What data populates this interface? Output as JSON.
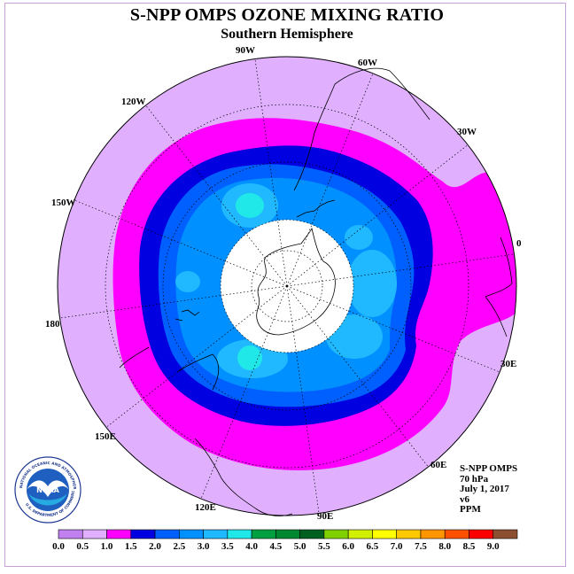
{
  "title": "S-NPP OMPS OZONE MIXING RATIO",
  "subtitle": "Southern Hemisphere",
  "info": {
    "instrument": "S-NPP OMPS",
    "level": "70 hPa",
    "date": "July 1, 2017",
    "version": "v6",
    "units": "PPM"
  },
  "logo": {
    "text": "NOAA",
    "ring_text": "NATIONAL OCEANIC AND ATMOSPHERIC ADMINISTRATION",
    "ring_text_bottom": "U.S. DEPARTMENT OF COMMERCE"
  },
  "longitude_labels": [
    "90W",
    "60W",
    "30W",
    "0",
    "30E",
    "60E",
    "90E",
    "120E",
    "150E",
    "180",
    "150W",
    "120W"
  ],
  "colorbar": {
    "ticks": [
      "0.0",
      "0.5",
      "1.0",
      "1.5",
      "2.0",
      "2.5",
      "3.0",
      "3.5",
      "4.0",
      "4.5",
      "5.0",
      "5.5",
      "6.0",
      "6.5",
      "7.0",
      "7.5",
      "8.0",
      "8.5",
      "9.0"
    ],
    "colors": [
      "#c080f0",
      "#e0b0ff",
      "#ff00ff",
      "#0000e0",
      "#0060ff",
      "#0090ff",
      "#20b8ff",
      "#20e8e8",
      "#00a040",
      "#008830",
      "#006020",
      "#80d000",
      "#d0f000",
      "#ffff00",
      "#ffc800",
      "#ff9600",
      "#ff5000",
      "#ff0000",
      "#8c5030"
    ]
  },
  "map_data": {
    "projection": "polar stereographic, south pole",
    "contour_levels_ppm": [
      0.5,
      1.0,
      1.5,
      2.0,
      2.5,
      3.0,
      3.5
    ],
    "polar_night_mask": "no data",
    "field_description_levels": {
      "outer": "0.5-1.0",
      "ring1": "1.0-1.5",
      "ring2": "1.5-2.0",
      "ring3": "2.0-2.5",
      "inner": "2.5-3.0",
      "pockets": "3.0-3.5, 3.5-4.0"
    }
  }
}
